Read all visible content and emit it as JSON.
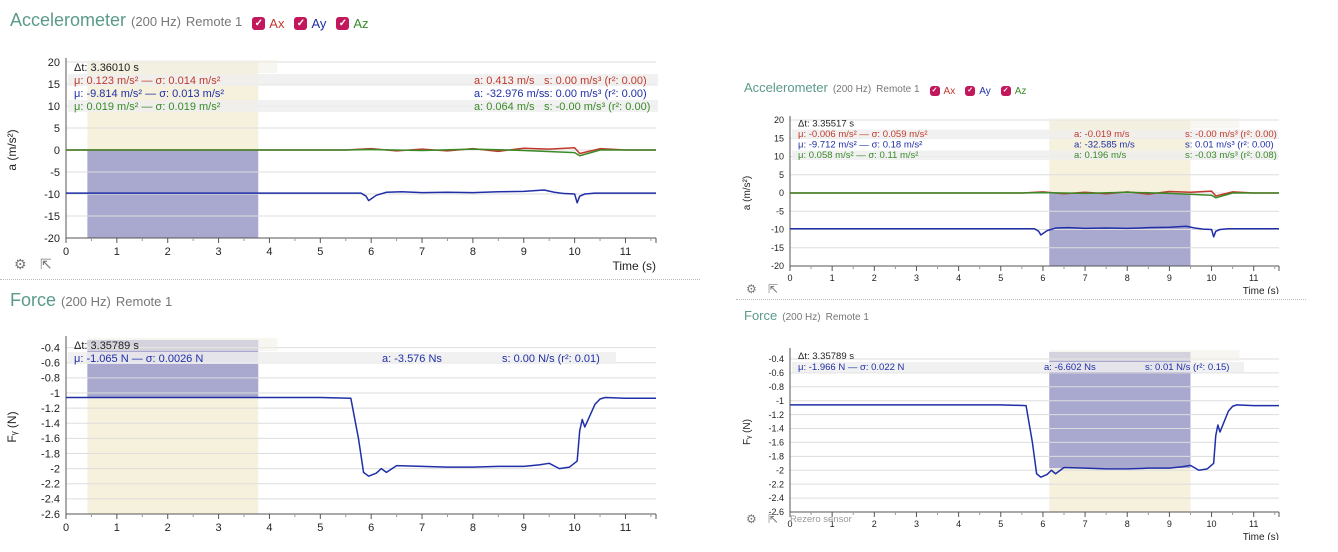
{
  "colors": {
    "x": "#c0392b",
    "y": "#1f2fa8",
    "z": "#3a8a28",
    "sensor_title": "#5b9a8b",
    "checkbox": "#c2185b",
    "selection_purple": "#a9a9cf",
    "selection_beige": "#f6f1dc"
  },
  "icons": {
    "settings": "gear-icon",
    "open_external": "external-link-icon",
    "checkbox": "check-icon"
  },
  "panels": [
    {
      "id": "left",
      "accel": {
        "title": "Accelerometer",
        "rate": "(200 Hz)",
        "remote": "Remote 1",
        "checks": [
          {
            "label": "Ax",
            "checked": true
          },
          {
            "label": "Ay",
            "checked": true
          },
          {
            "label": "Az",
            "checked": true
          }
        ],
        "ylabel": "a (m/s²)",
        "xlabel": "Time (s)",
        "yticks": [
          20,
          15,
          10,
          5,
          0,
          -5,
          -10,
          -15,
          -20
        ],
        "xticks": [
          0,
          1,
          2,
          3,
          4,
          5,
          6,
          7,
          8,
          9,
          10,
          11
        ],
        "ylim": [
          -20,
          20
        ],
        "xlim": [
          0,
          11.6
        ],
        "dt": "Δt: 3.36010 s",
        "stats": [
          {
            "mu": "μ: 0.123 m/s² — σ: 0.014 m/s²",
            "a": "a: 0.413 m/s",
            "s": "s: 0.00 m/s³ (r²: 0.00)"
          },
          {
            "mu": "μ: -9.814 m/s² — σ: 0.013 m/s²",
            "a": "a: -32.976 m/s",
            "s": "s: 0.00 m/s³ (r²: 0.00)"
          },
          {
            "mu": "μ: 0.019 m/s² — σ: 0.019 m/s²",
            "a": "a: 0.064 m/s",
            "s": "s: -0.00 m/s³ (r²: 0.00)"
          }
        ],
        "selection": [
          0.42,
          3.78
        ]
      },
      "force": {
        "title": "Force",
        "rate": "(200 Hz)",
        "remote": "Remote 1",
        "ylabel": "Fᵧ (N)",
        "xlabel": "",
        "yticks": [
          -0.4,
          -0.6,
          -0.8,
          -1.0,
          -1.2,
          -1.4,
          -1.6,
          -1.8,
          -2.0,
          -2.2,
          -2.4,
          -2.6
        ],
        "xticks": [
          0,
          1,
          2,
          3,
          4,
          5,
          6,
          7,
          8,
          9,
          10,
          11
        ],
        "ylim": [
          -2.6,
          -0.3
        ],
        "xlim": [
          0,
          11.6
        ],
        "dt": "Δt: 3.35789 s",
        "stats": [
          {
            "mu": "μ: -1.065 N — σ: 0.0026 N",
            "a": "a: -3.576 Ns",
            "s": "s: 0.00 N/s (r²: 0.01)"
          }
        ],
        "selection": [
          0.42,
          3.78
        ]
      }
    },
    {
      "id": "right",
      "accel": {
        "title": "Accelerometer",
        "rate": "(200 Hz)",
        "remote": "Remote 1",
        "checks": [
          {
            "label": "Ax",
            "checked": true
          },
          {
            "label": "Ay",
            "checked": true
          },
          {
            "label": "Az",
            "checked": true
          }
        ],
        "ylabel": "a (m/s²)",
        "xlabel": "Time (s)",
        "yticks": [
          20,
          15,
          10,
          5,
          0,
          -5,
          -10,
          -15,
          -20
        ],
        "xticks": [
          0,
          1,
          2,
          3,
          4,
          5,
          6,
          7,
          8,
          9,
          10,
          11
        ],
        "ylim": [
          -20,
          20
        ],
        "xlim": [
          0,
          11.6
        ],
        "dt": "Δt: 3.35517 s",
        "stats": [
          {
            "mu": "μ: -0.006 m/s² — σ: 0.059 m/s²",
            "a": "a: -0.019 m/s",
            "s": "s: -0.00 m/s³ (r²: 0.00)"
          },
          {
            "mu": "μ: -9.712 m/s² — σ: 0.18 m/s²",
            "a": "a: -32.585 m/s",
            "s": "s: 0.01 m/s³ (r²: 0.00)"
          },
          {
            "mu": "μ: 0.058 m/s² — σ: 0.11 m/s²",
            "a": "a: 0.196 m/s",
            "s": "s: -0.03 m/s³ (r²: 0.08)"
          }
        ],
        "selection": [
          6.15,
          9.5
        ]
      },
      "force": {
        "title": "Force",
        "rate": "(200 Hz)",
        "remote": "Remote 1",
        "ylabel": "Fᵧ (N)",
        "xlabel": "Time (s)",
        "yticks": [
          -0.4,
          -0.6,
          -0.8,
          -1.0,
          -1.2,
          -1.4,
          -1.6,
          -1.8,
          -2.0,
          -2.2,
          -2.4,
          -2.6
        ],
        "xticks": [
          0,
          1,
          2,
          3,
          4,
          5,
          6,
          7,
          8,
          9,
          10,
          11
        ],
        "ylim": [
          -2.6,
          -0.3
        ],
        "xlim": [
          0,
          11.6
        ],
        "dt": "Δt: 3.35789 s",
        "stats": [
          {
            "mu": "μ: -1.966 N — σ: 0.022 N",
            "a": "a: -6.602 Ns",
            "s": "s: 0.01 N/s (r²: 0.15)"
          }
        ],
        "selection": [
          6.15,
          9.5
        ],
        "rezero": "Rezero sensor"
      }
    }
  ],
  "chart_data": [
    {
      "type": "line",
      "ylabel": "a (m/s²)",
      "xlabel": "Time (s)",
      "ylim": [
        -20,
        20
      ],
      "series": [
        {
          "name": "Ax",
          "x": [
            0,
            5,
            5.5,
            6,
            6.5,
            7,
            7.5,
            8,
            8.5,
            9,
            9.5,
            10,
            10.1,
            10.5,
            11,
            11.6
          ],
          "y": [
            0,
            0,
            0,
            0.3,
            -0.2,
            0.2,
            -0.2,
            0.3,
            -0.3,
            0.4,
            0.2,
            0.5,
            -0.8,
            0.3,
            0,
            0
          ]
        },
        {
          "name": "Ay",
          "x": [
            0,
            5.8,
            5.9,
            5.95,
            6.1,
            6.3,
            6.6,
            7,
            7.5,
            8,
            8.5,
            9,
            9.4,
            9.6,
            9.8,
            10,
            10.05,
            10.1,
            10.2,
            10.4,
            10.7,
            11,
            11.6
          ],
          "y": [
            -9.8,
            -9.8,
            -10.5,
            -11.5,
            -10.3,
            -9.6,
            -9.5,
            -9.7,
            -9.6,
            -9.7,
            -9.5,
            -9.4,
            -9.1,
            -9.6,
            -9.9,
            -10,
            -12,
            -10.5,
            -10,
            -9.8,
            -9.8,
            -9.8,
            -9.8
          ]
        },
        {
          "name": "Az",
          "x": [
            0,
            5,
            5.5,
            6,
            7,
            8,
            9,
            10,
            10.1,
            10.5,
            11,
            11.6
          ],
          "y": [
            0,
            0,
            0,
            0.1,
            -0.1,
            0.2,
            -0.1,
            -0.6,
            -1.3,
            0,
            0,
            0
          ]
        }
      ]
    },
    {
      "type": "line",
      "ylabel": "Fᵧ (N)",
      "ylim": [
        -2.6,
        -0.3
      ],
      "series": [
        {
          "name": "Fᵧ",
          "x": [
            0,
            5,
            5.6,
            5.75,
            5.85,
            5.95,
            6.1,
            6.2,
            6.3,
            6.5,
            7,
            7.5,
            8,
            8.5,
            9,
            9.3,
            9.5,
            9.7,
            9.9,
            10.05,
            10.1,
            10.15,
            10.2,
            10.3,
            10.4,
            10.5,
            10.6,
            11,
            11.6
          ],
          "y": [
            -1.06,
            -1.06,
            -1.07,
            -1.6,
            -2.05,
            -2.1,
            -2.06,
            -2.0,
            -2.05,
            -1.96,
            -1.97,
            -1.98,
            -1.98,
            -1.97,
            -1.97,
            -1.95,
            -1.93,
            -2.0,
            -1.98,
            -1.9,
            -1.5,
            -1.35,
            -1.45,
            -1.3,
            -1.15,
            -1.08,
            -1.06,
            -1.07,
            -1.07
          ]
        }
      ]
    }
  ]
}
